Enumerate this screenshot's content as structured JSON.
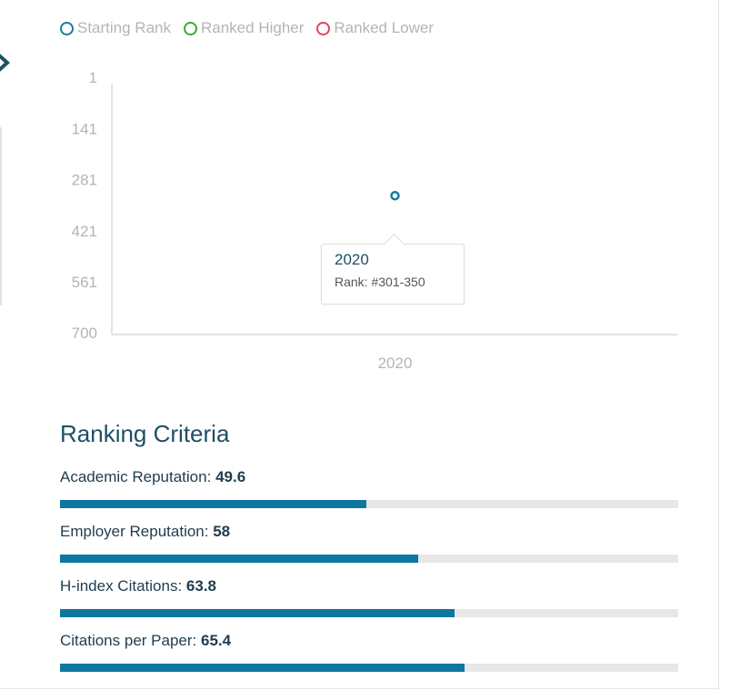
{
  "legend": [
    {
      "label": "Starting Rank",
      "color": "#137fa0"
    },
    {
      "label": "Ranked Higher",
      "color": "#3aaa35"
    },
    {
      "label": "Ranked Lower",
      "color": "#e0465a"
    }
  ],
  "chart_data": {
    "type": "scatter",
    "title": "",
    "xlabel": "",
    "ylabel": "",
    "y_reversed": true,
    "ylim": [
      1,
      700
    ],
    "y_ticks": [
      "1",
      "141",
      "281",
      "421",
      "561",
      "700"
    ],
    "x_ticks": [
      "2020"
    ],
    "series": [
      {
        "points": [
          {
            "x": "2020",
            "y": 325
          }
        ]
      }
    ],
    "tooltip": {
      "year": "2020",
      "rank": "Rank: #301-350"
    }
  },
  "criteria": {
    "title": "Ranking Criteria",
    "items": [
      {
        "label": "Academic Reputation:",
        "value": "49.6",
        "score": 49.6
      },
      {
        "label": "Employer Reputation:",
        "value": "58",
        "score": 58
      },
      {
        "label": "H-index Citations:",
        "value": "63.8",
        "score": 63.8
      },
      {
        "label": "Citations per Paper:",
        "value": "65.4",
        "score": 65.4
      }
    ]
  },
  "colors": {
    "accent": "#0e77a0",
    "heading": "#1e4f63",
    "muted": "#b4b4b4",
    "track": "#e7e7e7"
  }
}
